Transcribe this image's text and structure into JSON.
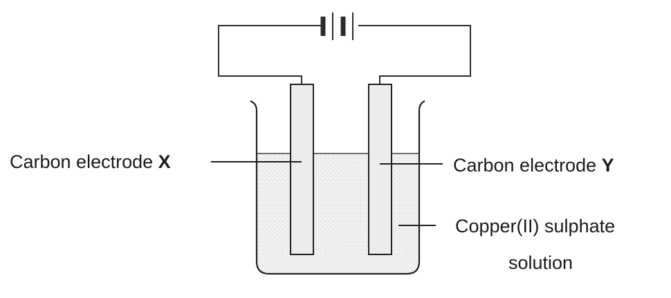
{
  "labels": {
    "electrode_x_text": "Carbon electrode ",
    "electrode_x_letter": "X",
    "electrode_y_text": "Carbon electrode ",
    "electrode_y_letter": "Y",
    "solution_line1": "Copper(II) sulphate",
    "solution_line2": "solution"
  }
}
